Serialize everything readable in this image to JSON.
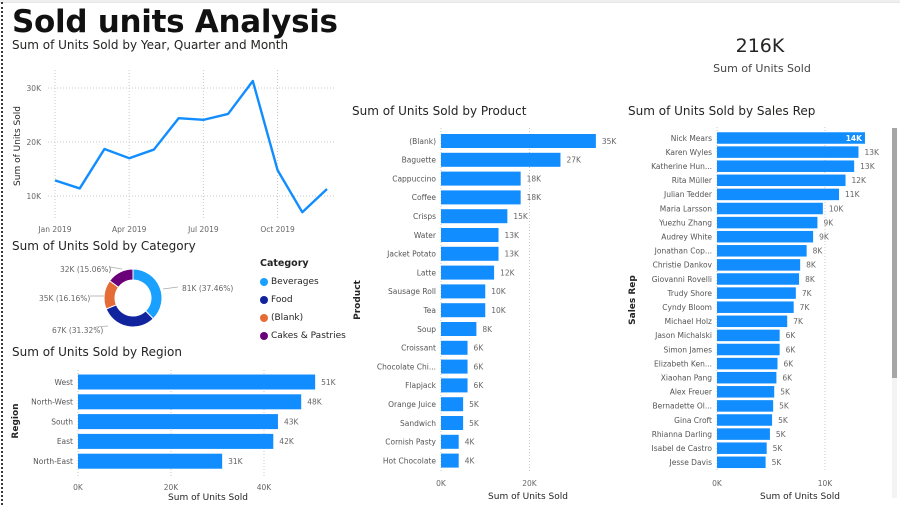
{
  "page": {
    "title": "Sold units Analysis"
  },
  "kpi": {
    "value": "216K",
    "label": "Sum of Units Sold"
  },
  "colors": {
    "primary": "#118DFF",
    "beverages": "#1AA0FF",
    "food": "#12239E",
    "blank": "#E66C37",
    "cakes": "#6B007B"
  },
  "chart_data": [
    {
      "id": "monthly",
      "type": "line",
      "title": "Sum of Units Sold by Year, Quarter and Month",
      "xlabel": "",
      "ylabel": "Sum of Units Sold",
      "x": [
        "Jan 2019",
        "Feb 2019",
        "Mar 2019",
        "Apr 2019",
        "May 2019",
        "Jun 2019",
        "Jul 2019",
        "Aug 2019",
        "Sep 2019",
        "Oct 2019",
        "Nov 2019",
        "Dec 2019"
      ],
      "x_tick_labels": [
        "Jan 2019",
        "Apr 2019",
        "Jul 2019",
        "Oct 2019"
      ],
      "values": [
        12900,
        11400,
        18700,
        17000,
        18600,
        24400,
        24100,
        25200,
        31300,
        14800,
        7000,
        11300
      ],
      "y_ticks": [
        10000,
        20000,
        30000
      ],
      "y_tick_labels": [
        "10K",
        "20K",
        "30K"
      ],
      "ylim": [
        5000,
        35000
      ],
      "grid": true
    },
    {
      "id": "category",
      "type": "pie",
      "variant": "donut",
      "title": "Sum of Units Sold by Category",
      "legend_title": "Category",
      "legend_position": "right",
      "categories": [
        "Beverages",
        "Food",
        "(Blank)",
        "Cakes & Pastries"
      ],
      "values": [
        81000,
        67000,
        35000,
        32000
      ],
      "percents": [
        37.46,
        31.32,
        16.16,
        15.06
      ],
      "labels": [
        "81K (37.46%)",
        "67K (31.32%)",
        "35K (16.16%)",
        "32K (15.06%)"
      ]
    },
    {
      "id": "region",
      "type": "bar",
      "orientation": "horizontal",
      "title": "Sum of Units Sold by Region",
      "xlabel": "Sum of Units Sold",
      "ylabel": "Region",
      "categories": [
        "West",
        "North-West",
        "South",
        "East",
        "North-East"
      ],
      "values": [
        51000,
        48000,
        43000,
        42000,
        31000
      ],
      "labels": [
        "51K",
        "48K",
        "43K",
        "42K",
        "31K"
      ],
      "x_ticks": [
        0,
        20000,
        40000
      ],
      "x_tick_labels": [
        "0K",
        "20K",
        "40K"
      ],
      "xlim": [
        0,
        55000
      ],
      "grid": true
    },
    {
      "id": "product",
      "type": "bar",
      "orientation": "horizontal",
      "title": "Sum of Units Sold by Product",
      "xlabel": "Sum of Units Sold",
      "ylabel": "Product",
      "categories": [
        "(Blank)",
        "Baguette",
        "Cappuccino",
        "Coffee",
        "Crisps",
        "Water",
        "Jacket Potato",
        "Latte",
        "Sausage Roll",
        "Tea",
        "Soup",
        "Croissant",
        "Chocolate Chi...",
        "Flapjack",
        "Orange Juice",
        "Sandwich",
        "Cornish Pasty",
        "Hot Chocolate"
      ],
      "values": [
        35000,
        27000,
        18000,
        18000,
        15000,
        13000,
        13000,
        12000,
        10000,
        10000,
        8000,
        6000,
        6000,
        6000,
        5000,
        5000,
        4000,
        4000
      ],
      "labels": [
        "35K",
        "27K",
        "18K",
        "18K",
        "15K",
        "13K",
        "13K",
        "12K",
        "10K",
        "10K",
        "8K",
        "6K",
        "6K",
        "6K",
        "5K",
        "5K",
        "4K",
        "4K"
      ],
      "x_ticks": [
        0,
        20000
      ],
      "x_tick_labels": [
        "0K",
        "20K"
      ],
      "xlim": [
        0,
        35000
      ],
      "grid": true
    },
    {
      "id": "salesrep",
      "type": "bar",
      "orientation": "horizontal",
      "title": "Sum of Units Sold by Sales Rep",
      "xlabel": "Sum of Units Sold",
      "ylabel": "Sales Rep",
      "categories": [
        "Nick Mears",
        "Karen Wyles",
        "Katherine Hun...",
        "Rita Müller",
        "Julian Tedder",
        "Maria Larsson",
        "Yuezhu Zhang",
        "Audrey White",
        "Jonathan Cop...",
        "Christie Dankov",
        "Giovanni Rovelli",
        "Trudy Shore",
        "Cyndy Bloom",
        "Michael Holz",
        "Jason Michalski",
        "Simon James",
        "Elizabeth Ken...",
        "Xiaohan Pang",
        "Alex Freuer",
        "Bernadette Ol...",
        "Gina Croft",
        "Rhianna Darling",
        "Isabel de Castro",
        "Jesse Davis"
      ],
      "values": [
        13700,
        13100,
        12700,
        11900,
        11300,
        9800,
        9300,
        8900,
        8300,
        7700,
        7600,
        7300,
        7100,
        6500,
        5800,
        5800,
        5600,
        5500,
        5300,
        5200,
        5100,
        4900,
        4600,
        4500
      ],
      "labels": [
        "14K",
        "13K",
        "13K",
        "12K",
        "11K",
        "10K",
        "9K",
        "9K",
        "8K",
        "8K",
        "8K",
        "7K",
        "7K",
        "7K",
        "6K",
        "6K",
        "6K",
        "6K",
        "5K",
        "5K",
        "5K",
        "5K",
        "5K",
        "5K"
      ],
      "x_ticks": [
        0,
        10000
      ],
      "x_tick_labels": [
        "0K",
        "10K"
      ],
      "xlim": [
        0,
        14000
      ],
      "grid": true
    }
  ]
}
